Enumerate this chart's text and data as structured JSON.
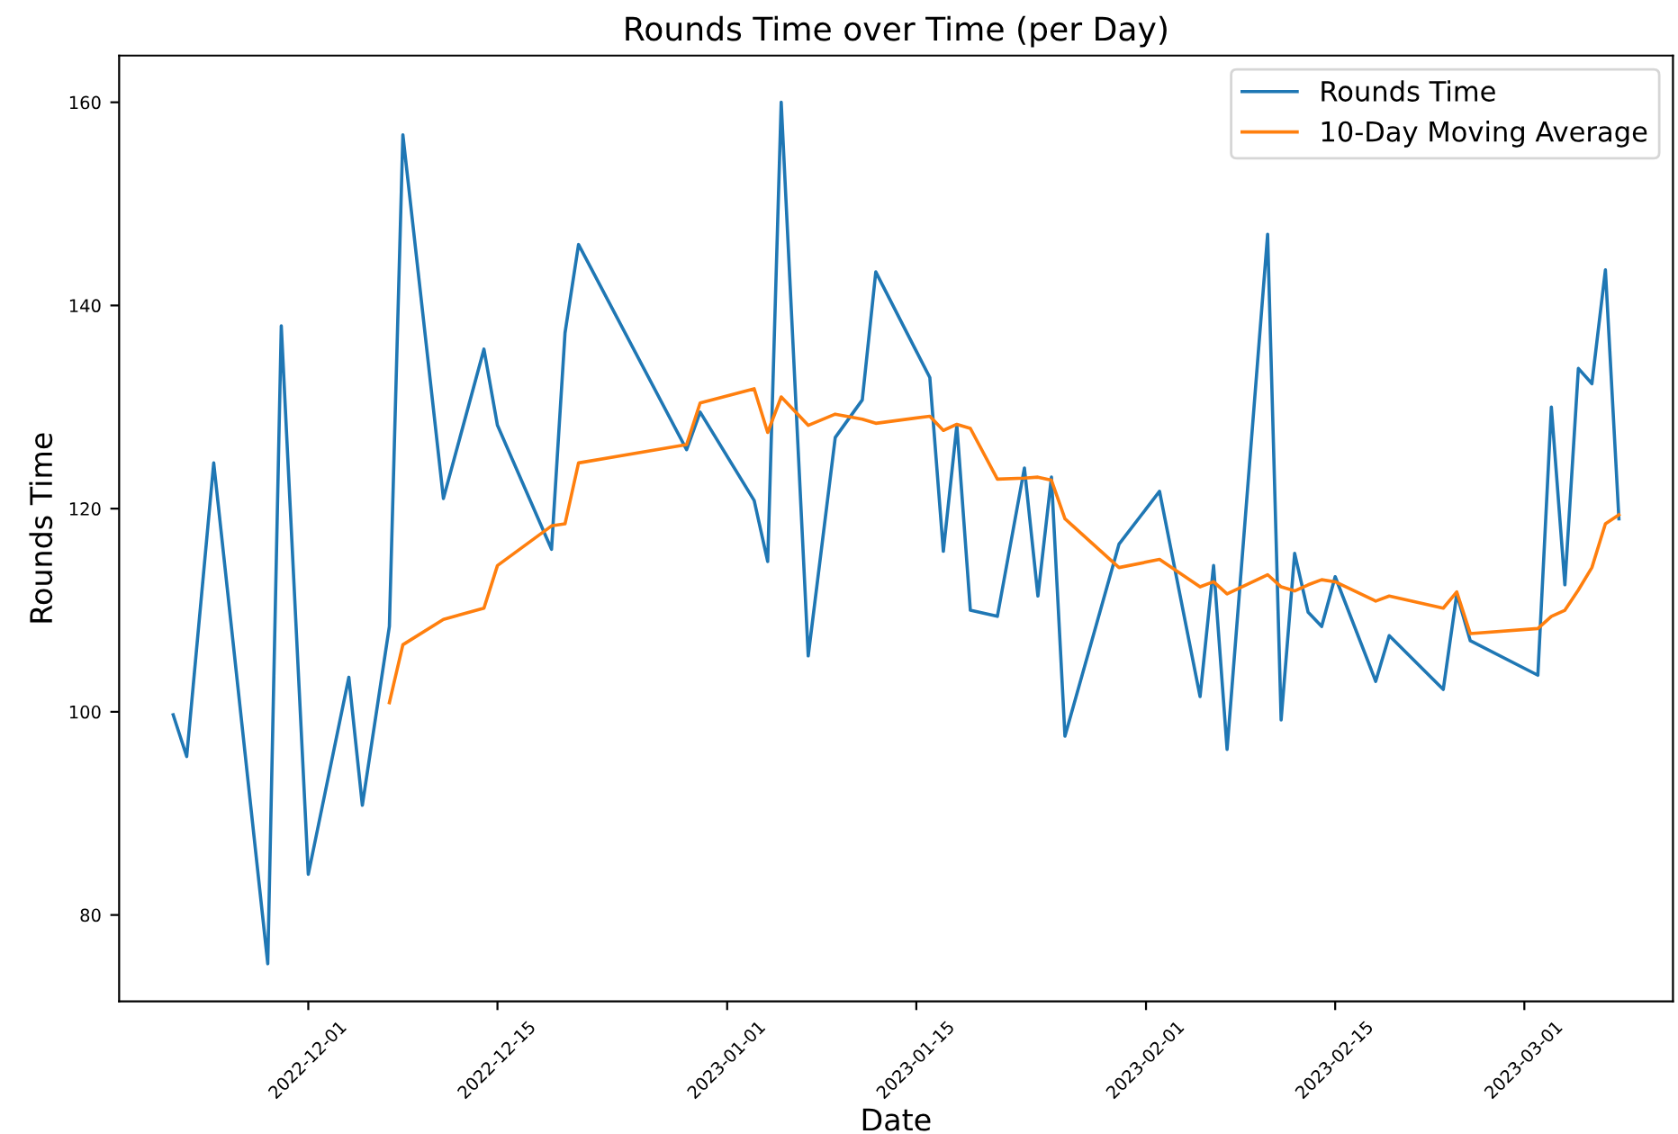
{
  "chart_data": {
    "type": "line",
    "title": "Rounds Time over Time (per Day)",
    "xlabel": "Date",
    "ylabel": "Rounds Time",
    "series": [
      {
        "name": "Rounds Time",
        "color": "#1f77b4",
        "x": [
          "2022-11-21",
          "2022-11-22",
          "2022-11-24",
          "2022-11-28",
          "2022-11-29",
          "2022-12-01",
          "2022-12-04",
          "2022-12-05",
          "2022-12-07",
          "2022-12-08",
          "2022-12-11",
          "2022-12-14",
          "2022-12-15",
          "2022-12-19",
          "2022-12-20",
          "2022-12-21",
          "2022-12-29",
          "2022-12-30",
          "2023-01-03",
          "2023-01-04",
          "2023-01-05",
          "2023-01-07",
          "2023-01-09",
          "2023-01-11",
          "2023-01-12",
          "2023-01-16",
          "2023-01-17",
          "2023-01-18",
          "2023-01-19",
          "2023-01-21",
          "2023-01-23",
          "2023-01-24",
          "2023-01-25",
          "2023-01-26",
          "2023-01-30",
          "2023-02-02",
          "2023-02-05",
          "2023-02-06",
          "2023-02-07",
          "2023-02-10",
          "2023-02-11",
          "2023-02-12",
          "2023-02-13",
          "2023-02-14",
          "2023-02-15",
          "2023-02-18",
          "2023-02-19",
          "2023-02-23",
          "2023-02-24",
          "2023-02-25",
          "2023-03-02",
          "2023-03-03",
          "2023-03-04",
          "2023-03-05",
          "2023-03-06",
          "2023-03-07",
          "2023-03-08"
        ],
        "values": [
          99.7,
          95.6,
          124.5,
          75.2,
          138,
          84,
          103.4,
          90.8,
          108.4,
          156.8,
          121,
          135.7,
          128.2,
          116,
          137.3,
          146,
          125.8,
          129.5,
          120.8,
          114.8,
          160,
          105.5,
          127,
          130.7,
          143.3,
          132.9,
          115.8,
          128.2,
          110,
          109.4,
          124,
          111.4,
          123.1,
          97.6,
          116.5,
          121.7,
          101.5,
          114.4,
          96.3,
          147,
          99.2,
          115.6,
          109.8,
          108.4,
          113.3,
          103,
          107.5,
          102.2,
          111.6,
          107,
          103.6,
          130,
          112.5,
          133.8,
          132.3,
          143.5,
          119
        ]
      },
      {
        "name": "10-Day Moving Average",
        "color": "#ff7f0e",
        "x": [
          "2022-12-07",
          "2022-12-08",
          "2022-12-11",
          "2022-12-14",
          "2022-12-15",
          "2022-12-19",
          "2022-12-20",
          "2022-12-21",
          "2022-12-29",
          "2022-12-30",
          "2023-01-03",
          "2023-01-04",
          "2023-01-05",
          "2023-01-07",
          "2023-01-09",
          "2023-01-11",
          "2023-01-12",
          "2023-01-16",
          "2023-01-17",
          "2023-01-18",
          "2023-01-19",
          "2023-01-21",
          "2023-01-23",
          "2023-01-24",
          "2023-01-25",
          "2023-01-26",
          "2023-01-30",
          "2023-02-02",
          "2023-02-05",
          "2023-02-06",
          "2023-02-07",
          "2023-02-10",
          "2023-02-11",
          "2023-02-12",
          "2023-02-13",
          "2023-02-14",
          "2023-02-15",
          "2023-02-18",
          "2023-02-19",
          "2023-02-23",
          "2023-02-24",
          "2023-02-25",
          "2023-03-02",
          "2023-03-03",
          "2023-03-04",
          "2023-03-05",
          "2023-03-06",
          "2023-03-07",
          "2023-03-08"
        ],
        "values": [
          100.9,
          106.6,
          109.1,
          110.2,
          114.4,
          118.3,
          118.5,
          124.5,
          126.3,
          130.4,
          131.8,
          127.5,
          131,
          128.2,
          129.3,
          128.8,
          128.4,
          129.1,
          127.7,
          128.3,
          127.9,
          122.9,
          123,
          123.1,
          122.8,
          119,
          114.2,
          115,
          112.3,
          112.8,
          111.6,
          113.5,
          112.3,
          111.9,
          112.5,
          113,
          112.8,
          110.9,
          111.4,
          110.2,
          111.8,
          107.7,
          108.2,
          109.4,
          110,
          112,
          114.2,
          118.5,
          119.4
        ]
      }
    ],
    "xlim": [
      "2022-11-17",
      "2023-03-12"
    ],
    "xticks": [
      {
        "value": "2022-12-01",
        "label": "2022-12-01"
      },
      {
        "value": "2022-12-15",
        "label": "2022-12-15"
      },
      {
        "value": "2023-01-01",
        "label": "2023-01-01"
      },
      {
        "value": "2023-01-15",
        "label": "2023-01-15"
      },
      {
        "value": "2023-02-01",
        "label": "2023-02-01"
      },
      {
        "value": "2023-02-15",
        "label": "2023-02-15"
      },
      {
        "value": "2023-03-01",
        "label": "2023-03-01"
      }
    ],
    "ylim": [
      71.5,
      164.6
    ],
    "yticks": [
      80,
      100,
      120,
      140,
      160
    ],
    "grid": false,
    "legend": "top right",
    "marker": "none",
    "line_style": "solid"
  }
}
